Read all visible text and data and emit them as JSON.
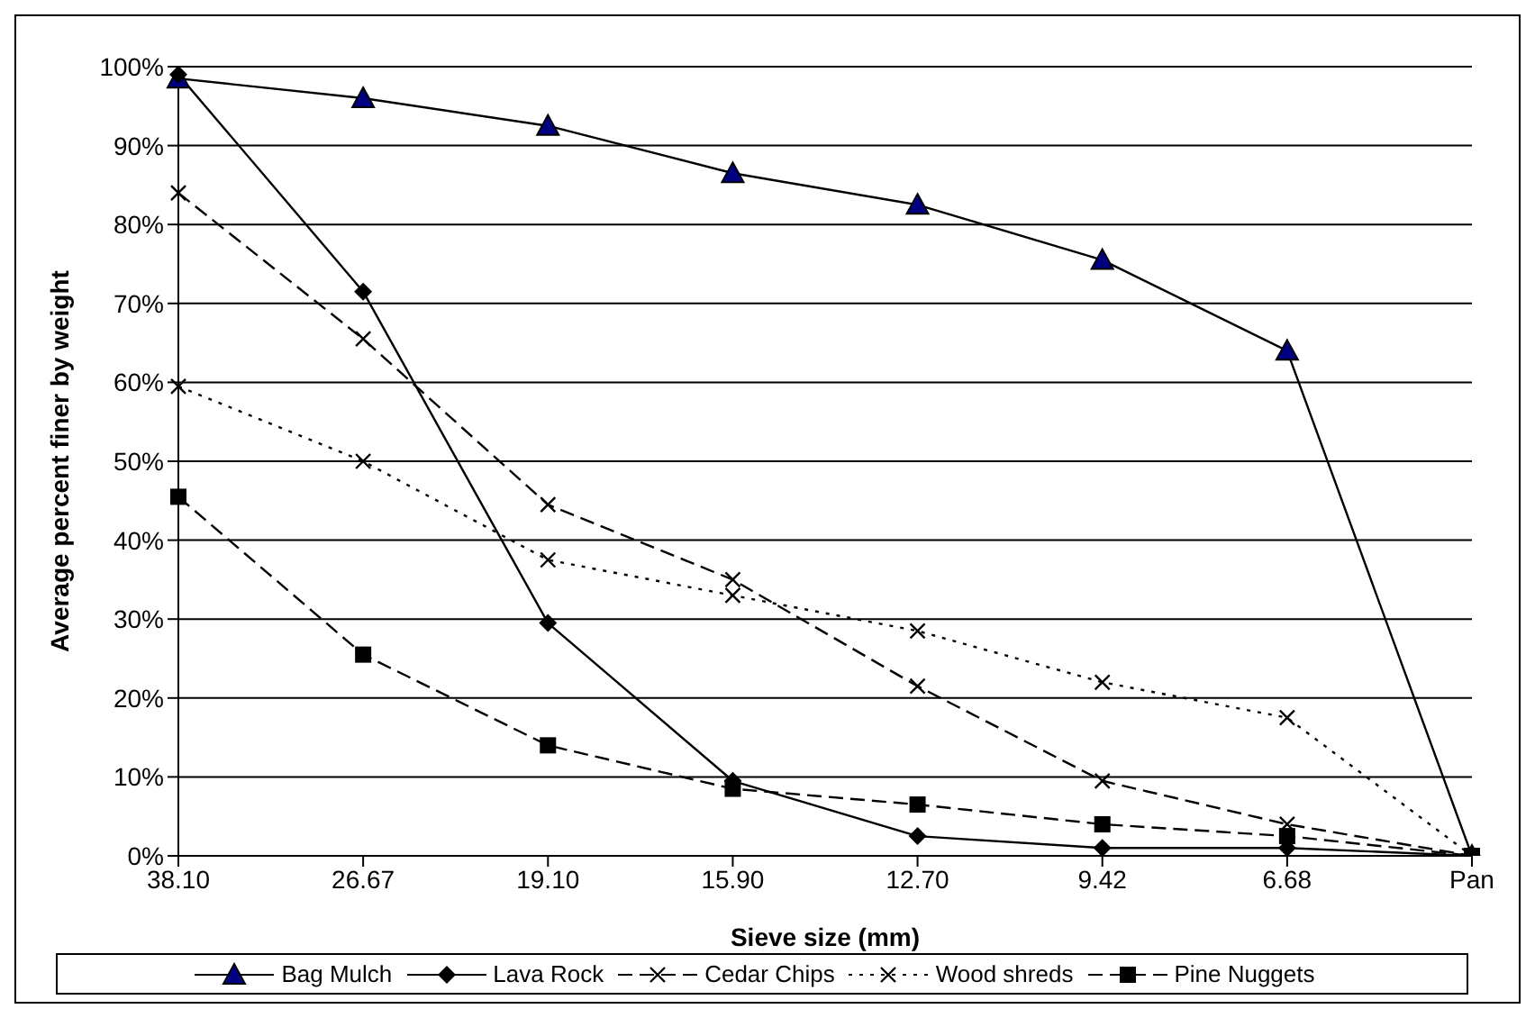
{
  "chart_data": {
    "type": "line",
    "xlabel": "Sieve size (mm)",
    "ylabel": "Average percent finer by weight",
    "categories": [
      "38.10",
      "26.67",
      "19.10",
      "15.90",
      "12.70",
      "9.42",
      "6.68",
      "Pan"
    ],
    "ylim": [
      0,
      100
    ],
    "yticks": [
      {
        "value": 0,
        "label": "0%"
      },
      {
        "value": 10,
        "label": "10%"
      },
      {
        "value": 20,
        "label": "20%"
      },
      {
        "value": 30,
        "label": "30%"
      },
      {
        "value": 40,
        "label": "40%"
      },
      {
        "value": 50,
        "label": "50%"
      },
      {
        "value": 60,
        "label": "60%"
      },
      {
        "value": 70,
        "label": "70%"
      },
      {
        "value": 80,
        "label": "80%"
      },
      {
        "value": 90,
        "label": "90%"
      },
      {
        "value": 100,
        "label": "100%"
      }
    ],
    "grid": "y",
    "legend": "bottom",
    "series": [
      {
        "name": "Bag Mulch",
        "color": "#000080",
        "marker": "triangle",
        "line_style": "solid",
        "values": [
          98.5,
          96,
          92.5,
          86.5,
          82.5,
          75.5,
          64,
          0
        ]
      },
      {
        "name": "Lava Rock",
        "color": "#000000",
        "marker": "diamond",
        "line_style": "solid",
        "values": [
          99,
          71.5,
          29.5,
          9.5,
          2.5,
          1,
          1,
          0
        ]
      },
      {
        "name": "Cedar Chips",
        "color": "#000000",
        "marker": "cross",
        "line_style": "dashed",
        "values": [
          84,
          65.5,
          44.5,
          35,
          21.5,
          9.5,
          4,
          0
        ]
      },
      {
        "name": "Wood shreds",
        "color": "#000000",
        "marker": "cross",
        "line_style": "dotted",
        "values": [
          59.5,
          50,
          37.5,
          33,
          28.5,
          22,
          17.5,
          0
        ]
      },
      {
        "name": "Pine Nuggets",
        "color": "#000000",
        "marker": "square",
        "line_style": "dashed",
        "values": [
          45.5,
          25.5,
          14,
          8.5,
          6.5,
          4,
          2.5,
          0
        ]
      }
    ]
  }
}
